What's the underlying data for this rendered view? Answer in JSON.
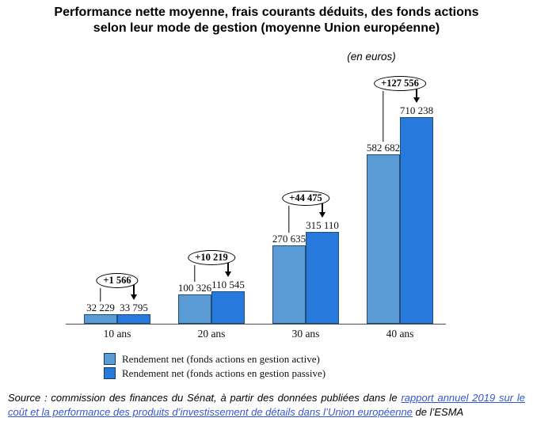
{
  "header": {
    "title_lines": [
      "Performance nette moyenne, frais courants déduits, des fonds actions",
      "selon leur mode de gestion (moyenne Union européenne)"
    ],
    "subtitle": "(en euros)"
  },
  "chart_data": {
    "type": "bar",
    "title": "Performance nette moyenne, frais courants déduits, des fonds actions selon leur mode de gestion (moyenne Union européenne)",
    "subtitle": "(en euros)",
    "categories": [
      "10 ans",
      "20 ans",
      "30 ans",
      "40 ans"
    ],
    "series": [
      {
        "name": "Rendement net (fonds actions en gestion active)",
        "color": "#5B9BD5",
        "values": [
          32229,
          100326,
          270635,
          582682
        ],
        "labels": [
          "32 229",
          "100 326",
          "270 635",
          "582 682"
        ]
      },
      {
        "name": "Rendement net (fonds actions en gestion passive)",
        "color": "#2879DC",
        "values": [
          33795,
          110545,
          315110,
          710238
        ],
        "labels": [
          "33 795",
          "110 545",
          "315 110",
          "710 238"
        ]
      }
    ],
    "annotations": [
      {
        "label": "+1 566",
        "value": 1566
      },
      {
        "label": "+10 219",
        "value": 10219
      },
      {
        "label": "+44 475",
        "value": 44475
      },
      {
        "label": "+127 556",
        "value": 127556
      }
    ],
    "xlabel": "",
    "ylabel": "",
    "ylim": [
      0,
      730000
    ],
    "grid": false,
    "legend_position": "bottom"
  },
  "legend": {
    "items": [
      {
        "label": "Rendement net (fonds actions en gestion active)",
        "color": "#5B9BD5"
      },
      {
        "label": "Rendement net (fonds actions en gestion passive)",
        "color": "#2879DC"
      }
    ]
  },
  "source": {
    "prefix": "Source : commission des finances du Sénat, à partir des données publiées dans le ",
    "link_text": "rapport annuel 2019 sur le coût et la performance des produits d’investissement de détails dans l’Union européenne",
    "suffix": " de l’ESMA"
  },
  "colors": {
    "active_bar": "#5B9BD5",
    "passive_bar": "#2879DC",
    "bar_border": "#1F4E79",
    "link": "#3556D4"
  }
}
